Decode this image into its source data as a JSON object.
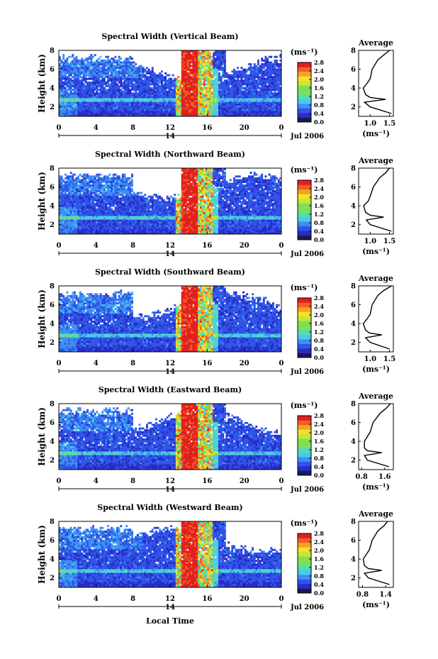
{
  "colors": {
    "scale": [
      "#1a1a60",
      "#2b2bc8",
      "#2f55e8",
      "#3d8ff0",
      "#4cc8ee",
      "#55ddb0",
      "#7ee05a",
      "#c8e632",
      "#f6e02a",
      "#f7a025",
      "#f06024",
      "#e02020"
    ]
  },
  "shared": {
    "height_label": "Height (km)",
    "unit_label": "(ms⁻¹)",
    "unit_label_small": "(ms⁻¹)",
    "avg_title": "Average",
    "date_label": "Jul 2006",
    "day_label": "14",
    "local_time_label": "Local Time",
    "x_ticks": [
      "0",
      "4",
      "8",
      "12",
      "16",
      "20",
      "0"
    ],
    "y_ticks": [
      "2",
      "4",
      "6",
      "8"
    ],
    "cb_ticks": [
      "0.0",
      "0.4",
      "0.8",
      "1.2",
      "1.6",
      "2.0",
      "2.4",
      "2.8"
    ]
  },
  "panels": [
    {
      "title": "Spectral Width (Vertical Beam)",
      "avg_x_ticks": [
        "1.0",
        "1.5"
      ]
    },
    {
      "title": "Spectral Width (Northward Beam)",
      "avg_x_ticks": [
        "1.0",
        "1.5"
      ]
    },
    {
      "title": "Spectral Width (Southward Beam)",
      "avg_x_ticks": [
        "1.0",
        "1.5"
      ]
    },
    {
      "title": "Spectral Width (Eastward Beam)",
      "avg_x_ticks": [
        "0.8",
        "1.6"
      ]
    },
    {
      "title": "Spectral Width (Westward Beam)",
      "avg_x_ticks": [
        "0.8",
        "1.4"
      ]
    }
  ],
  "chart_data": [
    {
      "type": "heatmap",
      "title": "Spectral Width (Vertical Beam)",
      "xlabel": "",
      "ylabel": "Height (km)",
      "x_range_hours": [
        0,
        24
      ],
      "ylim": [
        1,
        8
      ],
      "color_range": [
        0,
        2.8
      ],
      "colorbar_label": "(ms⁻¹)",
      "average_profile": {
        "title": "Average",
        "xlabel": "(ms⁻¹)",
        "xlim": [
          0.7,
          1.6
        ],
        "ylim": [
          1,
          8
        ],
        "heights": [
          1.3,
          2,
          2.5,
          2.8,
          3,
          3.3,
          4,
          4.5,
          5,
          6,
          7,
          7.5,
          8
        ],
        "values": [
          1.55,
          1.0,
          0.85,
          1.4,
          1.0,
          0.88,
          0.82,
          0.92,
          1.0,
          1.05,
          1.2,
          1.35,
          1.5
        ]
      }
    },
    {
      "type": "heatmap",
      "title": "Spectral Width (Northward Beam)",
      "xlabel": "",
      "ylabel": "Height (km)",
      "x_range_hours": [
        0,
        24
      ],
      "ylim": [
        1,
        8
      ],
      "color_range": [
        0,
        2.8
      ],
      "colorbar_label": "(ms⁻¹)",
      "average_profile": {
        "title": "Average",
        "xlabel": "(ms⁻¹)",
        "xlim": [
          0.7,
          1.6
        ],
        "ylim": [
          1,
          8
        ],
        "heights": [
          1.3,
          2,
          2.5,
          2.8,
          3,
          3.3,
          4,
          4.5,
          5,
          6,
          7,
          7.5,
          8
        ],
        "values": [
          1.55,
          1.0,
          0.9,
          1.35,
          1.0,
          0.88,
          0.83,
          0.95,
          1.0,
          1.08,
          1.25,
          1.4,
          1.5
        ]
      }
    },
    {
      "type": "heatmap",
      "title": "Spectral Width (Southward Beam)",
      "xlabel": "",
      "ylabel": "Height (km)",
      "x_range_hours": [
        0,
        24
      ],
      "ylim": [
        1,
        8
      ],
      "color_range": [
        0,
        2.8
      ],
      "colorbar_label": "(ms⁻¹)",
      "average_profile": {
        "title": "Average",
        "xlabel": "(ms⁻¹)",
        "xlim": [
          0.7,
          1.6
        ],
        "ylim": [
          1,
          8
        ],
        "heights": [
          1.3,
          2,
          2.5,
          2.8,
          3,
          3.3,
          4,
          4.5,
          5,
          6,
          7,
          7.5,
          8
        ],
        "values": [
          1.5,
          1.0,
          0.88,
          1.3,
          0.98,
          0.88,
          0.82,
          0.92,
          1.0,
          1.05,
          1.2,
          1.35,
          1.55
        ]
      }
    },
    {
      "type": "heatmap",
      "title": "Spectral Width (Eastward Beam)",
      "xlabel": "",
      "ylabel": "Height (km)",
      "x_range_hours": [
        0,
        24
      ],
      "ylim": [
        1,
        8
      ],
      "color_range": [
        0,
        2.8
      ],
      "colorbar_label": "(ms⁻¹)",
      "average_profile": {
        "title": "Average",
        "xlabel": "(ms⁻¹)",
        "xlim": [
          0.7,
          1.9
        ],
        "ylim": [
          1,
          8
        ],
        "heights": [
          1.3,
          2,
          2.5,
          2.8,
          3,
          3.3,
          4,
          4.5,
          5,
          6,
          7,
          7.5,
          8
        ],
        "values": [
          1.75,
          1.0,
          0.9,
          1.5,
          1.0,
          0.9,
          0.9,
          1.0,
          1.1,
          1.2,
          1.45,
          1.65,
          1.8
        ]
      }
    },
    {
      "type": "heatmap",
      "title": "Spectral Width (Westward Beam)",
      "xlabel": "Local Time",
      "ylabel": "Height (km)",
      "x_range_hours": [
        0,
        24
      ],
      "ylim": [
        1,
        8
      ],
      "color_range": [
        0,
        2.8
      ],
      "colorbar_label": "(ms⁻¹)",
      "average_profile": {
        "title": "Average",
        "xlabel": "(ms⁻¹)",
        "xlim": [
          0.7,
          1.6
        ],
        "ylim": [
          1,
          8
        ],
        "heights": [
          1.3,
          2,
          2.5,
          2.8,
          3,
          3.3,
          4,
          4.5,
          5,
          6,
          7,
          7.5,
          8
        ],
        "values": [
          1.5,
          0.95,
          0.85,
          1.3,
          0.95,
          0.85,
          0.82,
          0.9,
          0.98,
          1.05,
          1.2,
          1.35,
          1.45
        ]
      }
    }
  ]
}
